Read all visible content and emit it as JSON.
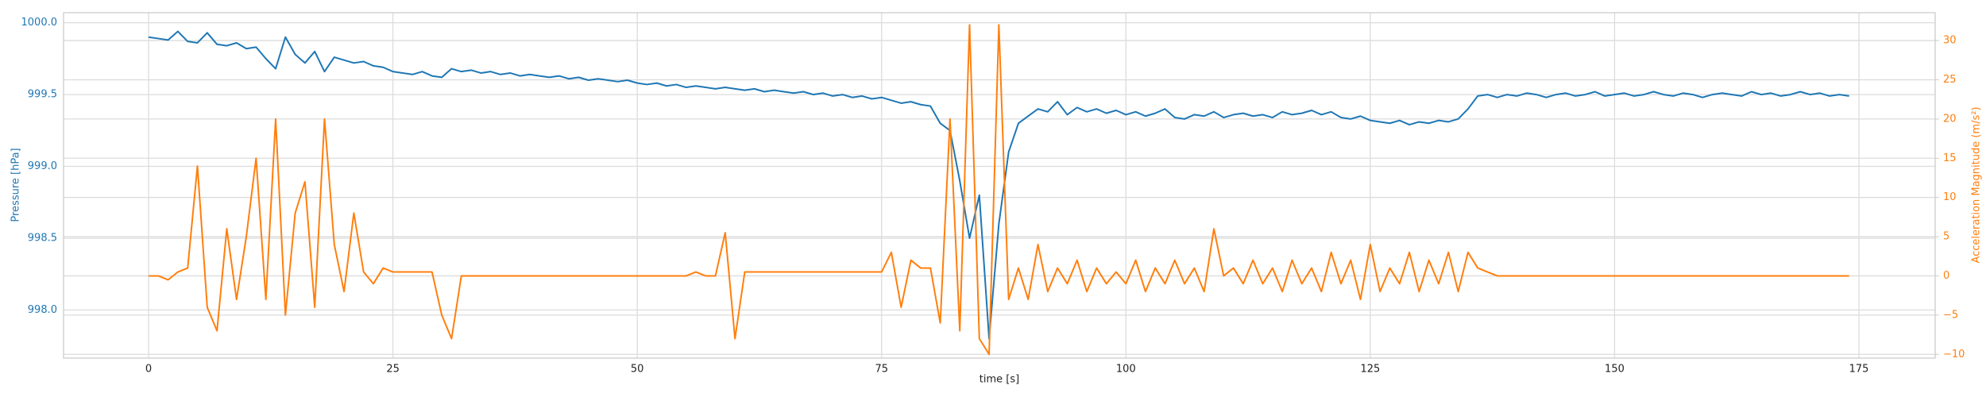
{
  "chart_data": {
    "type": "line",
    "xlabel": "time [s]",
    "ylabel": "Pressure [hPa]",
    "y2label": "Acceleration Magnitude (m/s²)",
    "grid": true,
    "xlim": [
      -8.7,
      182.8
    ],
    "xticks": [
      0,
      25,
      50,
      75,
      100,
      125,
      150,
      175
    ],
    "ylim": [
      997.665,
      1000.07
    ],
    "yticks": [
      {
        "value": 998,
        "label": "998.0"
      },
      {
        "value": 998.5,
        "label": "998.5"
      },
      {
        "value": 999,
        "label": "999.0"
      },
      {
        "value": 999.5,
        "label": "999.5"
      },
      {
        "value": 1000,
        "label": "1000.0"
      }
    ],
    "y2lim": [
      -10.48,
      33.55
    ],
    "y2ticks": [
      {
        "value": -10,
        "label": "−10"
      },
      {
        "value": -5,
        "label": "−5"
      },
      0,
      5,
      10,
      15,
      20,
      25,
      30
    ],
    "x": [
      0,
      1,
      2,
      3,
      4,
      5,
      6,
      7,
      8,
      9,
      10,
      11,
      12,
      13,
      14,
      15,
      16,
      17,
      18,
      19,
      20,
      21,
      22,
      23,
      24,
      25,
      26,
      27,
      28,
      29,
      30,
      31,
      32,
      33,
      34,
      35,
      36,
      37,
      38,
      39,
      40,
      41,
      42,
      43,
      44,
      45,
      46,
      47,
      48,
      49,
      50,
      51,
      52,
      53,
      54,
      55,
      56,
      57,
      58,
      59,
      60,
      61,
      62,
      63,
      64,
      65,
      66,
      67,
      68,
      69,
      70,
      71,
      72,
      73,
      74,
      75,
      76,
      77,
      78,
      79,
      80,
      81,
      82,
      83,
      84,
      85,
      86,
      87,
      88,
      89,
      90,
      91,
      92,
      93,
      94,
      95,
      96,
      97,
      98,
      99,
      100,
      101,
      102,
      103,
      104,
      105,
      106,
      107,
      108,
      109,
      110,
      111,
      112,
      113,
      114,
      115,
      116,
      117,
      118,
      119,
      120,
      121,
      122,
      123,
      124,
      125,
      126,
      127,
      128,
      129,
      130,
      131,
      132,
      133,
      134,
      135,
      136,
      137,
      138,
      139,
      140,
      141,
      142,
      143,
      144,
      145,
      146,
      147,
      148,
      149,
      150,
      151,
      152,
      153,
      154,
      155,
      156,
      157,
      158,
      159,
      160,
      161,
      162,
      163,
      164,
      165,
      166,
      167,
      168,
      169,
      170,
      171,
      172,
      173,
      174
    ],
    "series": [
      {
        "name": "Pressure [hPa]",
        "color": "#1f77b4",
        "axis": "y",
        "values": [
          999.9,
          999.89,
          999.88,
          999.94,
          999.87,
          999.86,
          999.93,
          999.85,
          999.84,
          999.86,
          999.82,
          999.83,
          999.75,
          999.68,
          999.9,
          999.78,
          999.72,
          999.8,
          999.66,
          999.76,
          999.74,
          999.72,
          999.73,
          999.7,
          999.69,
          999.66,
          999.65,
          999.64,
          999.66,
          999.63,
          999.62,
          999.68,
          999.66,
          999.67,
          999.65,
          999.66,
          999.64,
          999.65,
          999.63,
          999.64,
          999.63,
          999.62,
          999.63,
          999.61,
          999.62,
          999.6,
          999.61,
          999.6,
          999.59,
          999.6,
          999.58,
          999.57,
          999.58,
          999.56,
          999.57,
          999.55,
          999.56,
          999.55,
          999.54,
          999.55,
          999.54,
          999.53,
          999.54,
          999.52,
          999.53,
          999.52,
          999.51,
          999.52,
          999.5,
          999.51,
          999.49,
          999.5,
          999.48,
          999.49,
          999.47,
          999.48,
          999.46,
          999.44,
          999.45,
          999.43,
          999.42,
          999.3,
          999.25,
          998.9,
          998.5,
          998.8,
          997.8,
          998.6,
          999.1,
          999.3,
          999.35,
          999.4,
          999.38,
          999.45,
          999.36,
          999.41,
          999.38,
          999.4,
          999.37,
          999.39,
          999.36,
          999.38,
          999.35,
          999.37,
          999.4,
          999.34,
          999.33,
          999.36,
          999.35,
          999.38,
          999.34,
          999.36,
          999.37,
          999.35,
          999.36,
          999.34,
          999.38,
          999.36,
          999.37,
          999.39,
          999.36,
          999.38,
          999.34,
          999.33,
          999.35,
          999.32,
          999.31,
          999.3,
          999.32,
          999.29,
          999.31,
          999.3,
          999.32,
          999.31,
          999.33,
          999.4,
          999.49,
          999.5,
          999.48,
          999.5,
          999.49,
          999.51,
          999.5,
          999.48,
          999.5,
          999.51,
          999.49,
          999.5,
          999.52,
          999.49,
          999.5,
          999.51,
          999.49,
          999.5,
          999.52,
          999.5,
          999.49,
          999.51,
          999.5,
          999.48,
          999.5,
          999.51,
          999.5,
          999.49,
          999.52,
          999.5,
          999.51,
          999.49,
          999.5,
          999.52,
          999.5,
          999.51,
          999.49,
          999.5,
          999.49
        ]
      },
      {
        "name": "Acceleration Magnitude (m/s²)",
        "color": "#ff7f0e",
        "axis": "y2",
        "values": [
          0,
          0,
          -0.5,
          0.5,
          1,
          14,
          -4,
          -7,
          6,
          -3,
          5,
          15,
          -3,
          20,
          -5,
          8,
          12,
          -4,
          20,
          4,
          -2,
          8,
          0.5,
          -1,
          1,
          0.5,
          0.5,
          0.5,
          0.5,
          0.5,
          -5,
          -8,
          0,
          0,
          0,
          0,
          0,
          0,
          0,
          0,
          0,
          0,
          0,
          0,
          0,
          0,
          0,
          0,
          0,
          0,
          0,
          0,
          0,
          0,
          0,
          0,
          0.5,
          0,
          0,
          5.5,
          -8,
          0.5,
          0.5,
          0.5,
          0.5,
          0.5,
          0.5,
          0.5,
          0.5,
          0.5,
          0.5,
          0.5,
          0.5,
          0.5,
          0.5,
          0.5,
          3,
          -4,
          2,
          1,
          1,
          -6,
          20,
          -7,
          32,
          -8,
          -10,
          32,
          -3,
          1,
          -3,
          4,
          -2,
          1,
          -1,
          2,
          -2,
          1,
          -1,
          0.5,
          -1,
          2,
          -2,
          1,
          -1,
          2,
          -1,
          1,
          -2,
          6,
          0,
          1,
          -1,
          2,
          -1,
          1,
          -2,
          2,
          -1,
          1,
          -2,
          3,
          -1,
          2,
          -3,
          4,
          -2,
          1,
          -1,
          3,
          -2,
          2,
          -1,
          3,
          -2,
          3,
          1,
          0.5,
          0,
          0,
          0,
          0,
          0,
          0,
          0,
          0,
          0,
          0,
          0,
          0,
          0,
          0,
          0,
          0,
          0,
          0,
          0,
          0,
          0,
          0,
          0,
          0,
          0,
          0,
          0,
          0,
          0,
          0,
          0,
          0,
          0,
          0,
          0,
          0,
          0
        ]
      }
    ]
  }
}
